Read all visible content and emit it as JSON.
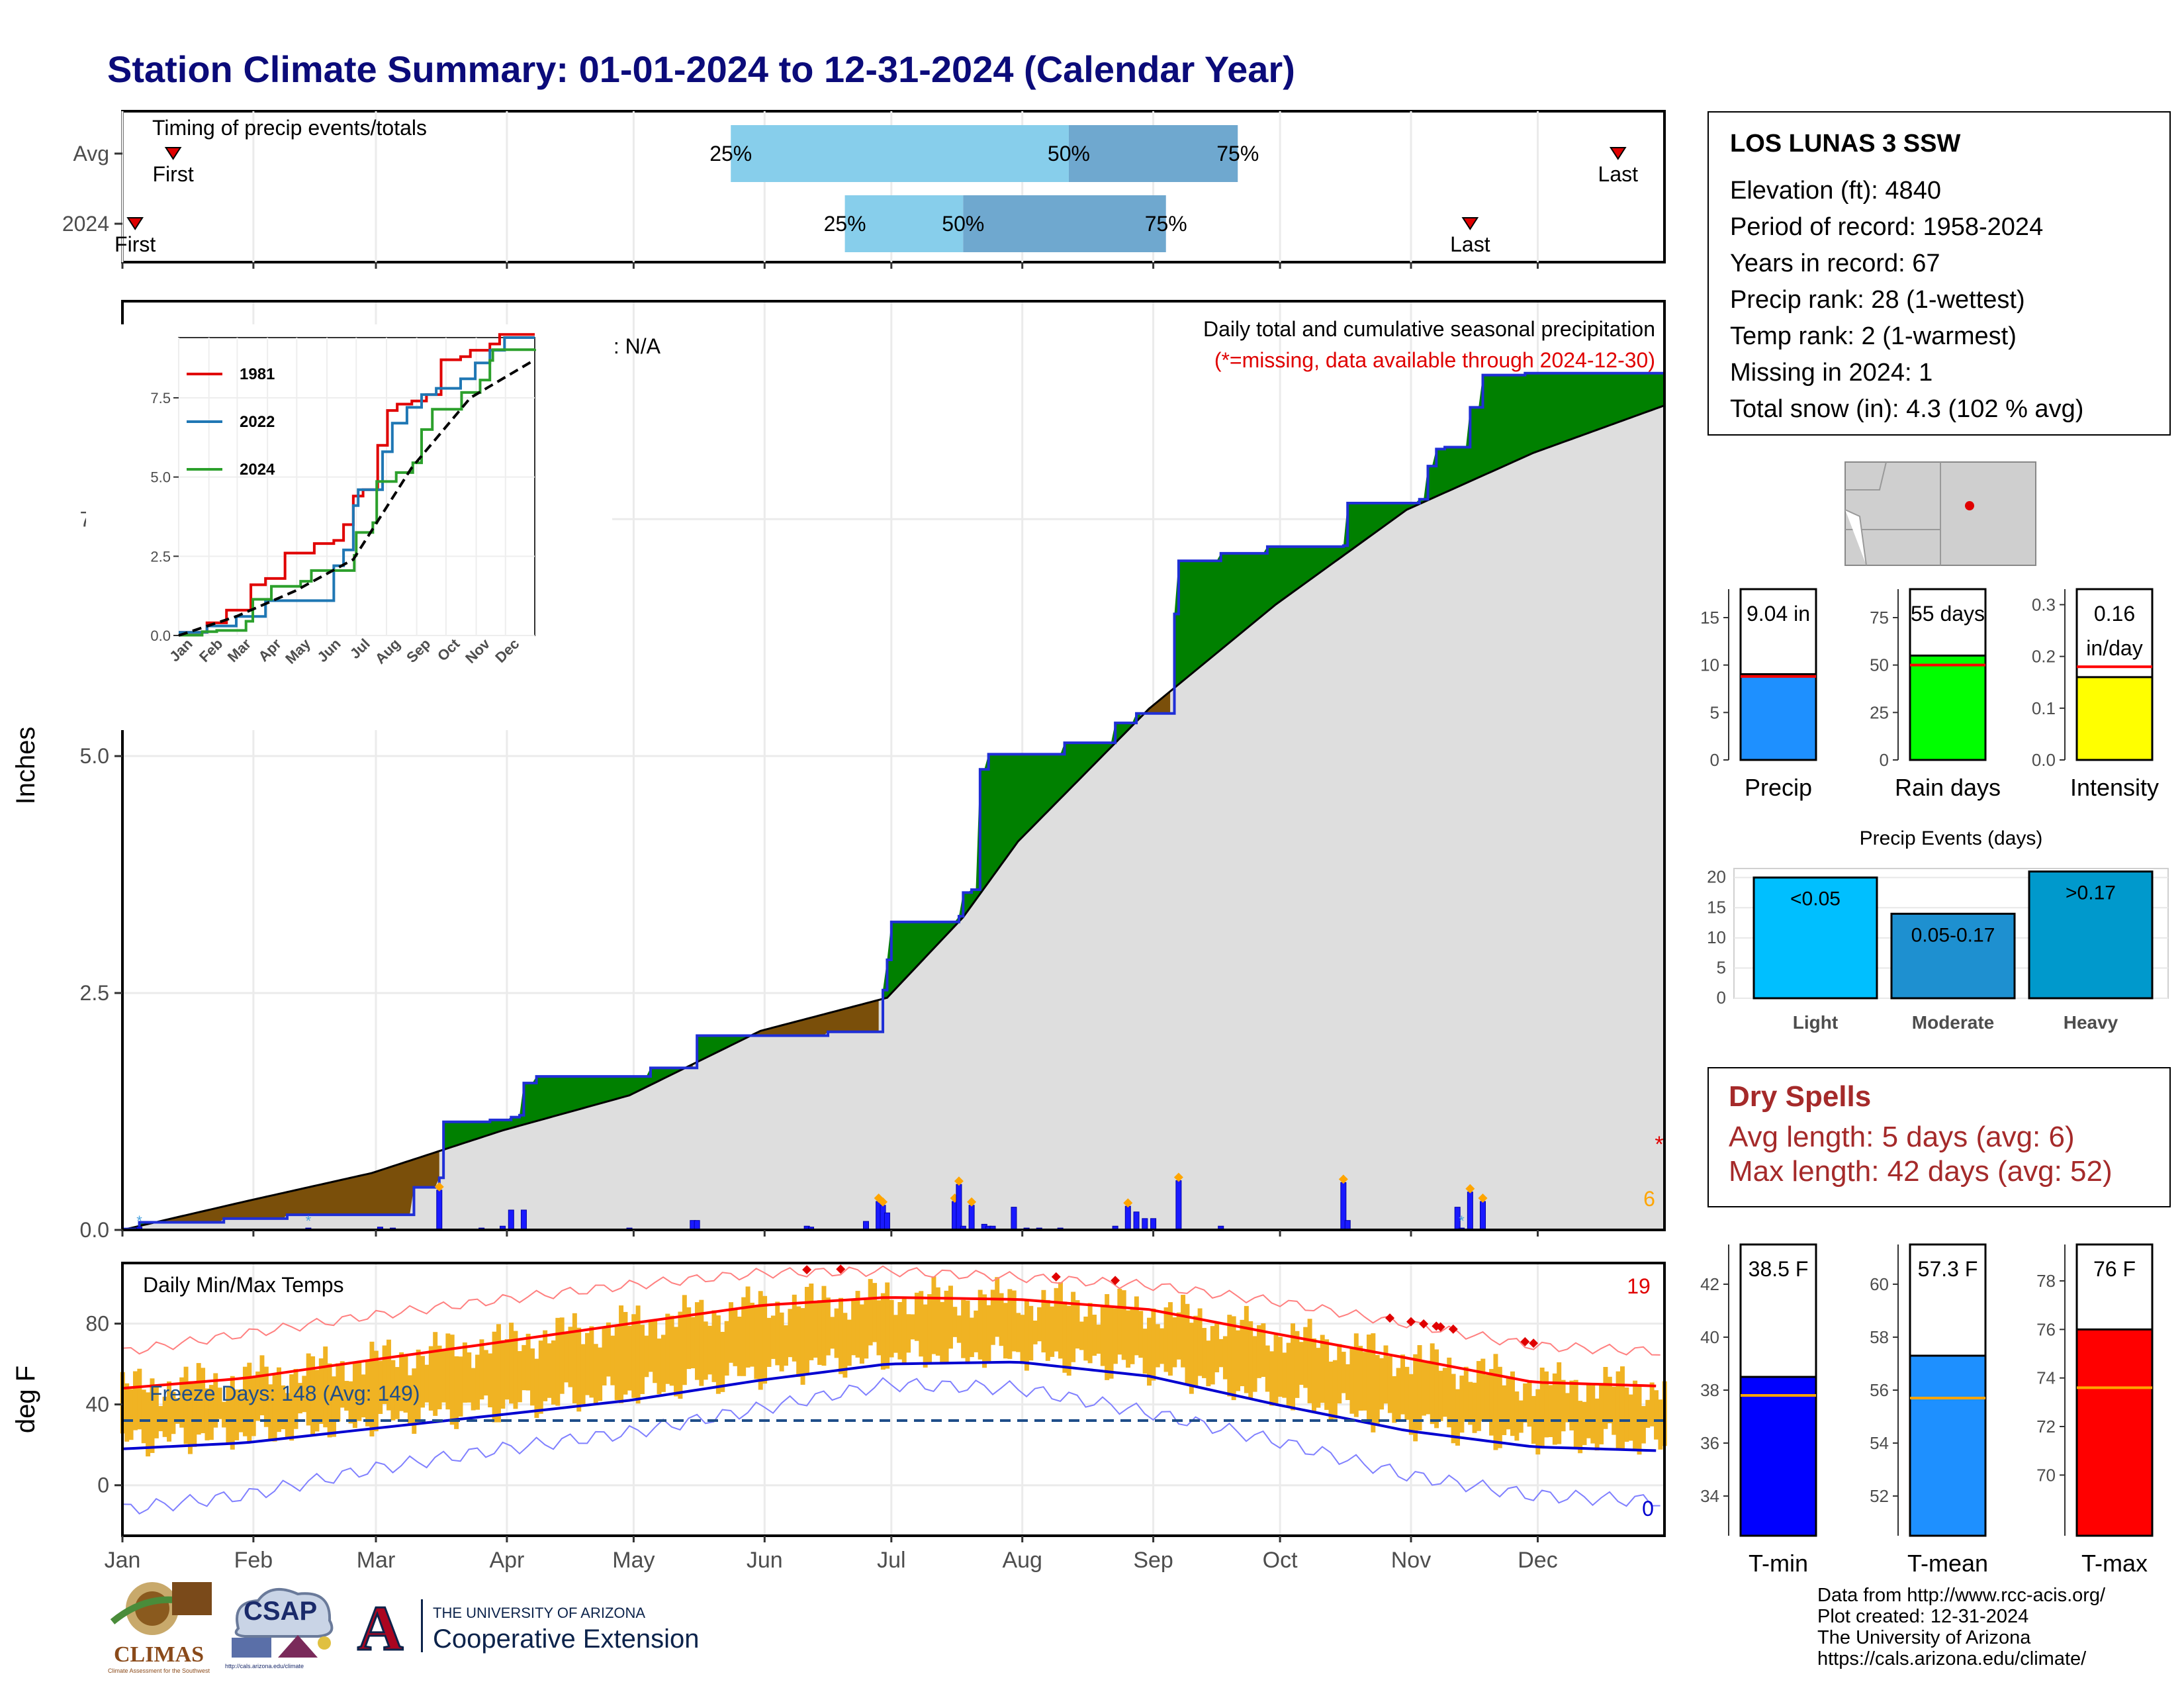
{
  "page": {
    "title": "Station Climate Summary: 01-01-2024 to 12-31-2024 (Calendar Year)"
  },
  "colors": {
    "title": "#0b0b7a",
    "precip_above": "#008000",
    "precip_below": "#7a4f0a",
    "cumulative_line": "#1f2fd6",
    "normal_fill": "#dedede",
    "daily_bar": "#1a1aff",
    "temp_bar": "#f0b323",
    "tmax_smooth": "#ff0000",
    "tmin_smooth": "#0000d0",
    "q_light": "#87ceeb",
    "q_dark": "#6fa8cf",
    "dry_spells": "#a52a2a"
  },
  "timing": {
    "heading": "Timing of precip events/totals",
    "rows": [
      {
        "label": "Avg",
        "first_label": "First",
        "last_label": "Last",
        "first_doy": 13,
        "last_doy": 355,
        "p25_label": "25%",
        "p50_label": "50%",
        "p75_label": "75%",
        "p25_doy": 145,
        "p50_doy": 225,
        "p75_doy": 265
      },
      {
        "label": "2024",
        "first_label": "First",
        "last_label": "Last",
        "first_doy": 4,
        "last_doy": 320,
        "p25_label": "25%",
        "p50_label": "50%",
        "p75_label": "75%",
        "p25_doy": 172,
        "p50_doy": 200,
        "p75_doy": 248
      }
    ]
  },
  "station": {
    "name": "LOS LUNAS 3 SSW",
    "lines": [
      "Elevation (ft): 4840",
      "Period of record: 1958-2024",
      "Years in record: 67",
      "Precip rank: 28 (1-wettest)",
      "Temp rank: 2 (1-warmest)",
      "Missing in 2024: 1",
      "Total snow (in): 4.3 (102 % avg)"
    ]
  },
  "precip_panel": {
    "ylabel": "Inches",
    "yticks": [
      "0.0",
      "2.5",
      "5.0",
      "7.5"
    ],
    "title": "Daily total and cumulative seasonal precipitation",
    "subtitle": "(*=missing, data available through 2024-12-30)",
    "oni": "ONI: N/A",
    "missing_marker": "*",
    "extreme_count": "6"
  },
  "inset": {
    "legend": [
      "1981",
      "2022",
      "2024"
    ],
    "yticks": [
      "0.0",
      "2.5",
      "5.0",
      "7.5"
    ],
    "months": [
      "Jan",
      "Feb",
      "Mar",
      "Apr",
      "May",
      "Jun",
      "Jul",
      "Aug",
      "Sep",
      "Oct",
      "Nov",
      "Dec"
    ]
  },
  "temp_panel": {
    "ylabel": "deg F",
    "title": "Daily Min/Max Temps",
    "yticks": [
      "0",
      "40",
      "80"
    ],
    "freeze_label": "Freeze Days: 148 (Avg: 149)",
    "hot_count": "19",
    "cold_count": "0"
  },
  "months": [
    "Jan",
    "Feb",
    "Mar",
    "Apr",
    "May",
    "Jun",
    "Jul",
    "Aug",
    "Sep",
    "Oct",
    "Nov",
    "Dec"
  ],
  "summary_bars": [
    {
      "label": "Precip",
      "value_text": "9.04 in",
      "yticks": [
        "0",
        "5",
        "10",
        "15"
      ]
    },
    {
      "label": "Rain days",
      "value_text": "55 days",
      "yticks": [
        "0",
        "25",
        "50",
        "75"
      ]
    },
    {
      "label": "Intensity",
      "value_text": "0.16",
      "value_text2": "in/day",
      "yticks": [
        "0.0",
        "0.1",
        "0.2",
        "0.3"
      ]
    }
  ],
  "events": {
    "title": "Precip Events (days)",
    "yticks": [
      "0",
      "5",
      "10",
      "15",
      "20"
    ],
    "categories": [
      "Light",
      "Moderate",
      "Heavy"
    ],
    "bar_labels": [
      "<0.05",
      "0.05-0.17",
      ">0.17"
    ]
  },
  "dry_spells": {
    "title": "Dry Spells",
    "lines": [
      "Avg length: 5 days (avg: 6)",
      "Max length: 42 days (avg: 52)"
    ]
  },
  "temp_summary": [
    {
      "label": "T-min",
      "value_text": "38.5 F",
      "yticks": [
        "34",
        "36",
        "38",
        "40",
        "42"
      ]
    },
    {
      "label": "T-mean",
      "value_text": "57.3 F",
      "yticks": [
        "52",
        "54",
        "56",
        "58",
        "60"
      ]
    },
    {
      "label": "T-max",
      "value_text": "76 F",
      "yticks": [
        "70",
        "72",
        "74",
        "76",
        "78"
      ]
    }
  ],
  "footer": {
    "lines": [
      "Data from http://www.rcc-acis.org/",
      "Plot created: 12-31-2024",
      "The University of Arizona",
      "https://cals.arizona.edu/climate/"
    ],
    "climas": "CLIMAS",
    "climas_sub": "Climate Assessment for the Southwest",
    "csap": "CSAP",
    "csap_url": "http://cals.arizona.edu/climate",
    "ua_top": "THE UNIVERSITY OF ARIZONA",
    "ua_bottom": "Cooperative Extension",
    "ua_letter": "A"
  },
  "chart_data": [
    {
      "type": "area",
      "title": "Daily total and cumulative seasonal precipitation",
      "ylabel": "Inches",
      "ylim": [
        0,
        9.8
      ],
      "xlim": [
        1,
        366
      ],
      "series": [
        {
          "name": "",
          "kind": "cumulative_2024_step",
          "x": [
            1,
            5,
            25,
            40,
            70,
            76,
            77,
            88,
            93,
            95,
            96,
            99,
            126,
            137,
            168,
            181,
            182,
            183,
            199,
            200,
            202,
            204,
            206,
            224,
            236,
            241,
            250,
            251,
            261,
            272,
            280,
            290,
            291,
            308,
            310,
            312,
            314,
            320,
            323,
            333,
            366
          ],
          "y": [
            0.01,
            0.08,
            0.12,
            0.16,
            0.45,
            0.55,
            1.14,
            1.16,
            1.19,
            1.21,
            1.55,
            1.62,
            1.71,
            2.05,
            2.09,
            2.53,
            2.85,
            3.25,
            3.31,
            3.56,
            3.59,
            4.86,
            5.02,
            5.14,
            5.35,
            5.45,
            6.5,
            7.06,
            7.14,
            7.21,
            7.21,
            7.22,
            7.67,
            7.71,
            8.06,
            8.24,
            8.26,
            8.68,
            9.02,
            9.04,
            9.04
          ]
        },
        {
          "name": "",
          "kind": "average_cumulative",
          "x": [
            1,
            30,
            60,
            91,
            121,
            152,
            182,
            200,
            213,
            244,
            274,
            305,
            335,
            366
          ],
          "y": [
            0.0,
            0.3,
            0.6,
            1.05,
            1.42,
            2.1,
            2.45,
            3.3,
            4.1,
            5.5,
            6.6,
            7.6,
            8.2,
            8.7
          ]
        },
        {
          "name": "",
          "kind": "daily_precip",
          "x": [
            5,
            45,
            62,
            65,
            76,
            86,
            91,
            93,
            96,
            121,
            136,
            137,
            163,
            164,
            177,
            180,
            181,
            182,
            198,
            199,
            200,
            202,
            205,
            206,
            207,
            212,
            215,
            218,
            223,
            236,
            239,
            241,
            243,
            245,
            251,
            261,
            290,
            291,
            317,
            318,
            320,
            323
          ],
          "y": [
            0.03,
            0.02,
            0.03,
            0.02,
            0.42,
            0.02,
            0.04,
            0.21,
            0.21,
            0.02,
            0.1,
            0.1,
            0.04,
            0.03,
            0.09,
            0.3,
            0.26,
            0.18,
            0.3,
            0.48,
            0.04,
            0.26,
            0.06,
            0.04,
            0.04,
            0.24,
            0.02,
            0.02,
            0.02,
            0.04,
            0.25,
            0.19,
            0.12,
            0.12,
            0.52,
            0.04,
            0.5,
            0.1,
            0.24,
            0.02,
            0.4,
            0.3
          ]
        }
      ]
    },
    {
      "type": "line",
      "xlabel": "",
      "ylim": [
        0,
        9.4
      ],
      "series": [
        {
          "name": "1981",
          "x": [
            1,
            30,
            50,
            75,
            90,
            110,
            140,
            160,
            170,
            180,
            190,
            205,
            215,
            225,
            240,
            255,
            270,
            290,
            300,
            320,
            330,
            345,
            366
          ],
          "y": [
            0.1,
            0.4,
            0.8,
            1.6,
            1.8,
            2.6,
            2.9,
            3.0,
            3.5,
            4.4,
            4.6,
            6.0,
            7.1,
            7.3,
            7.4,
            7.6,
            8.7,
            8.8,
            9.0,
            9.2,
            9.5,
            9.5,
            9.5
          ]
        },
        {
          "name": "2022",
          "x": [
            1,
            30,
            60,
            90,
            120,
            150,
            160,
            170,
            180,
            185,
            195,
            210,
            220,
            235,
            250,
            265,
            290,
            305,
            320,
            335,
            366
          ],
          "y": [
            0.1,
            0.3,
            0.6,
            1.1,
            1.1,
            1.1,
            2.2,
            2.7,
            4.1,
            4.6,
            4.6,
            5.8,
            6.7,
            7.2,
            7.6,
            7.8,
            8.1,
            8.6,
            9.0,
            9.4,
            9.4
          ]
        },
        {
          "name": "2024",
          "x": [
            1,
            25,
            40,
            70,
            77,
            96,
            126,
            137,
            181,
            183,
            200,
            204,
            224,
            241,
            250,
            261,
            291,
            310,
            320,
            323,
            366
          ],
          "y": [
            0.01,
            0.12,
            0.16,
            0.45,
            1.14,
            1.55,
            1.71,
            2.05,
            2.53,
            3.25,
            3.56,
            4.86,
            5.14,
            5.45,
            6.5,
            7.14,
            7.67,
            8.06,
            8.68,
            9.02,
            9.04
          ]
        },
        {
          "name": "",
          "kind": "average",
          "x": [
            1,
            60,
            120,
            180,
            240,
            300,
            366
          ],
          "y": [
            0.0,
            0.6,
            1.4,
            2.4,
            5.3,
            7.5,
            8.7
          ]
        }
      ]
    },
    {
      "type": "bar",
      "title": "Daily Min/Max Temps",
      "ylabel": "deg F",
      "ylim": [
        -25,
        110
      ],
      "freeze_line": 32,
      "series": [
        {
          "name": "",
          "kind": "tmax_smoothed",
          "x": [
            1,
            30,
            60,
            91,
            121,
            152,
            182,
            213,
            244,
            274,
            305,
            335,
            366
          ],
          "y": [
            48,
            53,
            62,
            71,
            80,
            89,
            93,
            92,
            87,
            75,
            63,
            51,
            49
          ]
        },
        {
          "name": "",
          "kind": "tmin_smoothed",
          "x": [
            1,
            30,
            60,
            91,
            121,
            152,
            182,
            213,
            244,
            274,
            305,
            335,
            366
          ],
          "y": [
            18,
            21,
            28,
            35,
            42,
            52,
            60,
            61,
            54,
            40,
            27,
            19,
            17
          ]
        },
        {
          "name": "",
          "kind": "record_high",
          "x": [
            1,
            30,
            60,
            91,
            121,
            152,
            182,
            213,
            244,
            274,
            305,
            335,
            366
          ],
          "y": [
            66,
            75,
            84,
            92,
            99,
            105,
            106,
            103,
            99,
            91,
            80,
            69,
            66
          ]
        },
        {
          "name": "",
          "kind": "record_low",
          "x": [
            1,
            30,
            60,
            91,
            121,
            152,
            182,
            213,
            244,
            274,
            305,
            335,
            366
          ],
          "y": [
            -12,
            -5,
            8,
            18,
            26,
            38,
            50,
            48,
            36,
            22,
            5,
            -5,
            -8
          ]
        }
      ]
    },
    {
      "type": "bar",
      "categories": [
        "Precip",
        "Rain days",
        "Intensity"
      ],
      "values": [
        9.04,
        55,
        0.16
      ],
      "averages": [
        8.8,
        50,
        0.18
      ],
      "ylims": [
        [
          0,
          18
        ],
        [
          0,
          90
        ],
        [
          0,
          0.33
        ]
      ]
    },
    {
      "type": "bar",
      "title": "Precip Events (days)",
      "categories": [
        "Light",
        "Moderate",
        "Heavy"
      ],
      "values": [
        20,
        14,
        21
      ],
      "ylim": [
        0,
        21.5
      ]
    },
    {
      "type": "bar",
      "categories": [
        "T-min",
        "T-mean",
        "T-max"
      ],
      "values": [
        38.5,
        57.3,
        76
      ],
      "averages": [
        37.8,
        55.7,
        73.6
      ],
      "ylims": [
        [
          32.5,
          43.5
        ],
        [
          50.5,
          61.5
        ],
        [
          67.5,
          79.5
        ]
      ]
    }
  ]
}
